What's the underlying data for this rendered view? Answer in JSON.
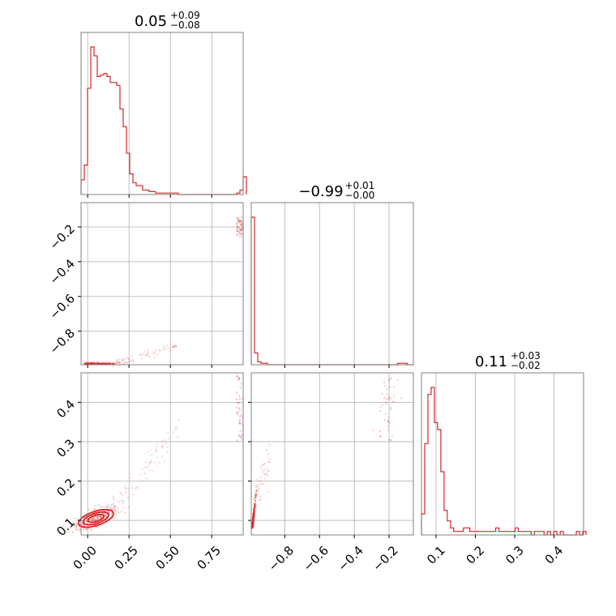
{
  "chart_data": {
    "type": "corner",
    "color": "#d62728",
    "parameters": [
      {
        "index": 0,
        "range": [
          -0.04,
          0.94
        ],
        "ticks": [
          0.0,
          0.25,
          0.5,
          0.75
        ],
        "tick_labels": [
          "0.00",
          "0.25",
          "0.50",
          "0.75"
        ]
      },
      {
        "index": 1,
        "range": [
          -0.993,
          -0.06
        ],
        "ticks": [
          -0.8,
          -0.6,
          -0.4,
          -0.2
        ],
        "tick_labels": [
          "−0.8",
          "−0.6",
          "−0.4",
          "−0.2"
        ]
      },
      {
        "index": 2,
        "range": [
          0.063,
          0.475
        ],
        "ticks": [
          0.1,
          0.2,
          0.3,
          0.4
        ],
        "tick_labels": [
          "0.1",
          "0.2",
          "0.3",
          "0.4"
        ]
      }
    ],
    "titles": [
      {
        "median": "0.05",
        "plus": "+0.09",
        "minus": "−0.08"
      },
      {
        "median": "−0.99",
        "plus": "+0.01",
        "minus": "−0.00"
      },
      {
        "median": "0.11",
        "plus": "+0.03",
        "minus": "−0.02"
      }
    ],
    "histograms": [
      {
        "param": 0,
        "bin_start": -0.04,
        "bin_width": 0.0196,
        "counts": [
          10,
          20,
          72,
          100,
          94,
          80,
          81,
          82,
          80,
          76,
          76,
          74,
          58,
          46,
          28,
          14,
          8,
          6,
          6,
          3,
          3,
          2,
          2,
          1,
          1,
          1,
          1,
          1,
          1,
          1,
          0,
          0,
          0,
          0,
          0,
          0,
          0,
          0,
          0,
          0,
          0,
          0,
          0,
          0,
          0,
          0,
          0,
          0,
          1,
          3,
          12
        ]
      },
      {
        "param": 1,
        "bin_start": -0.993,
        "bin_width": 0.0187,
        "counts": [
          100,
          8,
          2,
          1,
          1,
          0,
          0,
          0,
          0,
          0,
          0,
          0,
          0,
          0,
          0,
          0,
          0,
          0,
          0,
          0,
          0,
          0,
          0,
          0,
          0,
          0,
          0,
          0,
          0,
          0,
          0,
          0,
          0,
          0,
          0,
          0,
          0,
          0,
          0,
          0,
          0,
          0,
          0,
          0,
          0,
          1,
          1,
          1,
          0,
          0
        ]
      },
      {
        "param": 2,
        "bin_start": 0.063,
        "bin_width": 0.0082,
        "counts": [
          6,
          26,
          40,
          42,
          32,
          30,
          18,
          7,
          4,
          2,
          1,
          1,
          1,
          2,
          2,
          1,
          1,
          1,
          1,
          1,
          1,
          1,
          1,
          2,
          1,
          1,
          1,
          1,
          1,
          2,
          1,
          1,
          1,
          1,
          0,
          1,
          1,
          1,
          0,
          1,
          0,
          1,
          0,
          1,
          0,
          0,
          0,
          0,
          1,
          0,
          1
        ]
      }
    ],
    "scatter": [
      {
        "x_param": 0,
        "y_param": 1,
        "description_points": "samples"
      },
      {
        "x_param": 0,
        "y_param": 2,
        "description_points": "samples"
      },
      {
        "x_param": 1,
        "y_param": 2,
        "description_points": "samples"
      }
    ],
    "grid": true
  }
}
